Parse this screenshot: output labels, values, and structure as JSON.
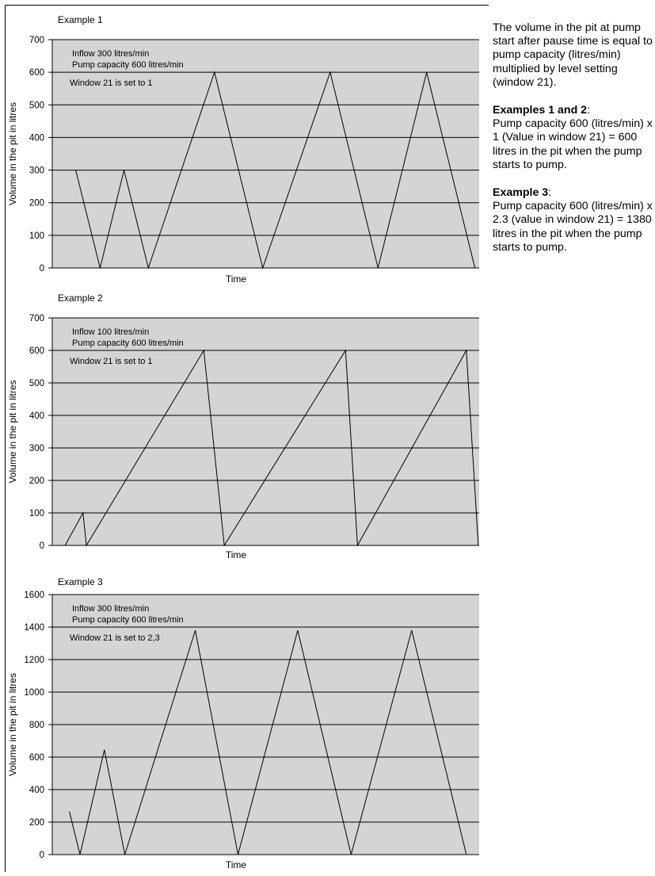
{
  "sidebar": {
    "intro": "The volume in the pit at pump start after pause time is equal to pump capacity (litres/min) multiplied by level setting (window 21).",
    "block1_heading": "Examples 1 and 2",
    "block1_text": "Pump capacity 600 (litres/min) x 1 (Value in window 21) = 600 litres in the pit when the pump starts to pump.",
    "block2_heading": "Example 3",
    "block2_text": "Pump capacity 600 (litres/min) x 2.3 (value in window 21) = 1380 litres in the pit when the pump starts to pump."
  },
  "colors": {
    "plot_bg": "#d4d4d4",
    "line": "#000000",
    "grid": "#000000"
  },
  "chart_data": [
    {
      "type": "line",
      "title": "Example 1",
      "xlabel": "Time",
      "ylabel": "Volume in the pit in litres",
      "yticks": [
        0,
        100,
        200,
        300,
        400,
        500,
        600,
        700
      ],
      "ylim": [
        0,
        700
      ],
      "xlim": [
        0,
        100
      ],
      "grid": true,
      "annotations": [
        "Inflow 300 litres/min",
        "Pump capacity 600 litres/min",
        "Window 21 is set to 1"
      ],
      "series": [
        {
          "x": [
            5.5,
            11.2,
            16.8,
            22.5,
            38,
            49.3,
            65.1,
            76.3,
            87.7,
            99
          ],
          "y": [
            300,
            0,
            300,
            0,
            600,
            0,
            600,
            0,
            600,
            0
          ]
        }
      ]
    },
    {
      "type": "line",
      "title": "Example 2",
      "xlabel": "Time",
      "ylabel": "Volume in the pit in litres",
      "yticks": [
        0,
        100,
        200,
        300,
        400,
        500,
        600,
        700
      ],
      "ylim": [
        0,
        700
      ],
      "xlim": [
        0,
        100
      ],
      "grid": true,
      "annotations": [
        "Inflow 100 litres/min",
        "Pump capacity 600 litres/min",
        "Window 21 is set to 1"
      ],
      "series": [
        {
          "x": [
            3,
            7.2,
            8,
            35.5,
            40.3,
            68.7,
            71.5,
            97,
            99.8
          ],
          "y": [
            0,
            100,
            0,
            600,
            0,
            600,
            0,
            600,
            0
          ]
        }
      ]
    },
    {
      "type": "line",
      "title": "Example 3",
      "xlabel": "Time",
      "ylabel": "Volume in the pit in litres",
      "yticks": [
        0,
        200,
        400,
        600,
        800,
        1000,
        1200,
        1400,
        1600
      ],
      "ylim": [
        0,
        1600
      ],
      "xlim": [
        0,
        100
      ],
      "grid": true,
      "annotations": [
        "Inflow 300 litres/min",
        "Pump capacity 600 litres/min",
        "Window 21 is set to 2,3"
      ],
      "series": [
        {
          "x": [
            4,
            6.5,
            12.2,
            17,
            33.5,
            43.5,
            57.5,
            70,
            84.2,
            97
          ],
          "y": [
            265,
            0,
            645,
            0,
            1380,
            0,
            1380,
            0,
            1380,
            0
          ]
        }
      ]
    }
  ]
}
